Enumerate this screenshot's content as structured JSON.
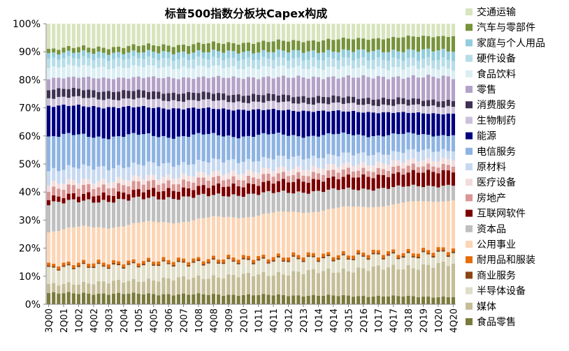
{
  "chart_data": {
    "type": "bar",
    "stacked": true,
    "normalized": true,
    "title": "标普500指数分板块Capex构成",
    "xlabel": "",
    "ylabel": "",
    "ylim": [
      0,
      100
    ],
    "yunit": "%",
    "yticks": [
      0,
      10,
      20,
      30,
      40,
      50,
      60,
      70,
      80,
      90,
      100
    ],
    "grid": false,
    "legend_position": "right",
    "quarters_start": "3Q00",
    "quarters_end": "4Q20",
    "categories": [
      "3Q00",
      "4Q00",
      "1Q01",
      "2Q01",
      "3Q01",
      "4Q01",
      "1Q02",
      "2Q02",
      "3Q02",
      "4Q02",
      "1Q03",
      "2Q03",
      "3Q03",
      "4Q03",
      "1Q04",
      "2Q04",
      "3Q04",
      "4Q04",
      "1Q05",
      "2Q05",
      "3Q05",
      "4Q05",
      "1Q06",
      "2Q06",
      "3Q06",
      "4Q06",
      "1Q07",
      "2Q07",
      "3Q07",
      "4Q07",
      "1Q08",
      "2Q08",
      "3Q08",
      "4Q08",
      "1Q09",
      "2Q09",
      "3Q09",
      "4Q09",
      "1Q10",
      "2Q10",
      "3Q10",
      "4Q10",
      "1Q11",
      "2Q11",
      "3Q11",
      "4Q11",
      "1Q12",
      "2Q12",
      "3Q12",
      "4Q12",
      "1Q13",
      "2Q13",
      "3Q13",
      "4Q13",
      "1Q14",
      "2Q14",
      "3Q14",
      "4Q14",
      "1Q15",
      "2Q15",
      "3Q15",
      "4Q15",
      "1Q16",
      "2Q16",
      "3Q16",
      "4Q16",
      "1Q17",
      "2Q17",
      "3Q17",
      "4Q17",
      "1Q18",
      "2Q18",
      "3Q18",
      "4Q18",
      "1Q19",
      "2Q19",
      "3Q19",
      "4Q19",
      "1Q20",
      "2Q20",
      "3Q20",
      "4Q20"
    ],
    "tick_labels": [
      "3Q00",
      "2Q01",
      "1Q02",
      "4Q02",
      "3Q03",
      "2Q04",
      "1Q05",
      "4Q05",
      "3Q06",
      "2Q07",
      "1Q08",
      "4Q08",
      "3Q09",
      "2Q10",
      "1Q11",
      "4Q11",
      "3Q12",
      "2Q13",
      "1Q14",
      "4Q14",
      "3Q15",
      "2Q16",
      "1Q17",
      "4Q17",
      "3Q18",
      "2Q19",
      "1Q20",
      "4Q20"
    ],
    "series": [
      {
        "name": "食品零售",
        "color": "#7a7a3c",
        "start": 4,
        "end": 2.5
      },
      {
        "name": "媒体",
        "color": "#c4bd97",
        "start": 3,
        "end": 11
      },
      {
        "name": "半导体设备",
        "color": "#e0ddc8",
        "start": 6,
        "end": 3.5
      },
      {
        "name": "商业服务",
        "color": "#8b4513",
        "start": 0.5,
        "end": 0.5
      },
      {
        "name": "耐用品和服装",
        "color": "#e46c0a",
        "start": 1,
        "end": 1
      },
      {
        "name": "公用事业",
        "color": "#fcd5b5",
        "start": 12,
        "end": 17
      },
      {
        "name": "资本品",
        "color": "#bfbfbf",
        "start": 10,
        "end": 5
      },
      {
        "name": "互联网软件",
        "color": "#7b0000",
        "start": 2,
        "end": 5
      },
      {
        "name": "房地产",
        "color": "#d99694",
        "start": 3,
        "end": 2
      },
      {
        "name": "医疗设备",
        "color": "#f2dcdb",
        "start": 2,
        "end": 2
      },
      {
        "name": "原材料",
        "color": "#c6d9f1",
        "start": 5,
        "end": 3
      },
      {
        "name": "电信服务",
        "color": "#8db3e2",
        "start": 12,
        "end": 5
      },
      {
        "name": "能源",
        "color": "#000080",
        "start": 11,
        "end": 7
      },
      {
        "name": "生物制药",
        "color": "#ccc1da",
        "start": 3,
        "end": 2.5
      },
      {
        "name": "消费服务",
        "color": "#3f3151",
        "start": 3,
        "end": 2
      },
      {
        "name": "零售",
        "color": "#b3a2c7",
        "start": 4,
        "end": 8
      },
      {
        "name": "食品饮料",
        "color": "#dbeef4",
        "start": 4,
        "end": 3
      },
      {
        "name": "硬件设备",
        "color": "#b7dde8",
        "start": 3,
        "end": 3
      },
      {
        "name": "家庭与个人用品",
        "color": "#93cddd",
        "start": 2,
        "end": 3
      },
      {
        "name": "汽车与零部件",
        "color": "#77933c",
        "start": 1.5,
        "end": 5
      },
      {
        "name": "交通运输",
        "color": "#d7e4bd",
        "start": 9,
        "end": 4
      }
    ]
  }
}
